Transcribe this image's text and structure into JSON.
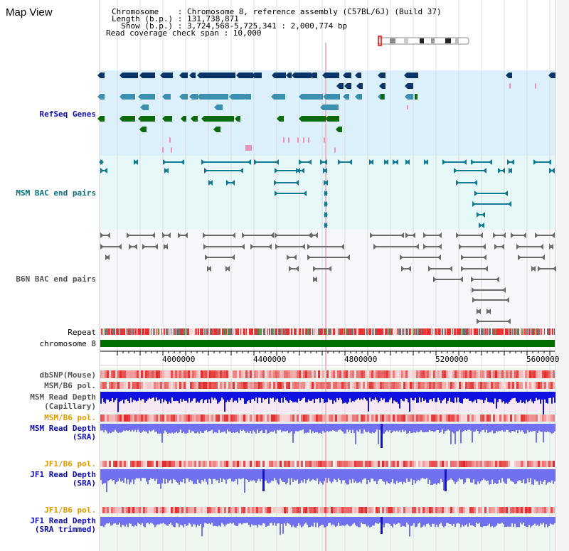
{
  "title": "Map View",
  "info": {
    "line1": "Chromosome    : Chromosome 8, reference assembly (C57BL/6J) (Build 37)",
    "line2": "Length (b.p.) : 131,738,871",
    "line3": "  Show (b.p.) : 3,724,568-5,725,341 : 2,000,774 bp",
    "line4": "Read coverage check span : 10,000"
  },
  "tracks": {
    "refseq": "RefSeq Genes",
    "msm_bac": "MSM BAC end pairs",
    "b6n_bac": "B6N BAC end pairs",
    "repeat": "Repeat",
    "chromosome": "chromosome 8",
    "dbsnp": "dbSNP(Mouse)",
    "msm_b6_pol_1": "MSM/B6 pol.",
    "msm_depth_cap_1": "MSM Read Depth",
    "msm_depth_cap_2": "(Capillary)",
    "msm_b6_pol_2": "MSM/B6 pol.",
    "msm_depth_sra_1": "MSM Read Depth",
    "msm_depth_sra_2": "(SRA)",
    "jf1_b6_pol_1": "JF1/B6 pol.",
    "jf1_depth_sra_1": "JF1 Read Depth",
    "jf1_depth_sra_2": "(SRA)",
    "jf1_b6_pol_2": "JF1/B6 pol.",
    "jf1_depth_trim_1": "JF1 Read Depth",
    "jf1_depth_trim_2": "(SRA trimmed)"
  },
  "axis": {
    "ticks": [
      "4000000",
      "4400000",
      "4800000",
      "5200000",
      "5600000"
    ]
  },
  "colors": {
    "refseq_bg": "#dbf0fa",
    "msm_bac_bg": "#e6f8f8",
    "b6n_bac_bg": "#f6f6fb",
    "lower_bg": "#eef8f0",
    "gene_dark": "#0b3568",
    "gene_mid": "#3d8fb0",
    "gene_green": "#0b6b0b",
    "bac_teal": "#137a93",
    "bac_gray": "#6b6b6b",
    "chromosome": "#007000",
    "depth_dark": "#1010e0",
    "depth_light": "#7070f0",
    "pol_red": "#e82020"
  }
}
